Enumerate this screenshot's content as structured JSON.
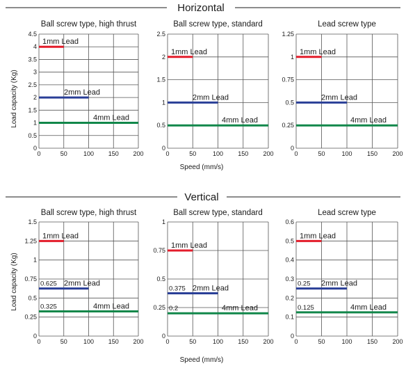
{
  "sections": [
    {
      "title": "Horizontal",
      "ylabel": "Load capacity (Kg)",
      "xlabel": "Speed (mm/s)"
    },
    {
      "title": "Vertical",
      "ylabel": "Load capacity (Kg)",
      "xlabel": "Speed (mm/s)"
    }
  ],
  "colors": {
    "1mm": "#e31d2b",
    "2mm": "#2a3f97",
    "4mm": "#11874a",
    "grid": "#555555",
    "divider": "#1a1a1a"
  },
  "chart_data": [
    {
      "type": "line",
      "section": 0,
      "title": "Ball screw type, high thrust",
      "xlim": [
        0,
        200
      ],
      "ylim": [
        0,
        4.5
      ],
      "xticks": [
        "0",
        "50",
        "100",
        "150",
        "200"
      ],
      "yticks": [
        "0",
        "0.5",
        "1",
        "1.5",
        "2",
        "2.5",
        "3",
        "3.5",
        "4",
        "4.5"
      ],
      "series": [
        {
          "name": "1mm Lead",
          "color": "1mm",
          "x": [
            0,
            50
          ],
          "y": [
            4,
            4
          ]
        },
        {
          "name": "2mm Lead",
          "color": "2mm",
          "x": [
            0,
            100
          ],
          "y": [
            2,
            2
          ]
        },
        {
          "name": "4mm Lead",
          "color": "4mm",
          "x": [
            0,
            200
          ],
          "y": [
            1,
            1
          ]
        }
      ],
      "annotations": []
    },
    {
      "type": "line",
      "section": 0,
      "title": "Ball screw type, standard",
      "xlim": [
        0,
        200
      ],
      "ylim": [
        0,
        2.5
      ],
      "xticks": [
        "0",
        "50",
        "100",
        "150",
        "200"
      ],
      "yticks": [
        "0",
        "0.5",
        "1",
        "1.5",
        "2",
        "2.5"
      ],
      "series": [
        {
          "name": "1mm Lead",
          "color": "1mm",
          "x": [
            0,
            50
          ],
          "y": [
            2,
            2
          ]
        },
        {
          "name": "2mm Lead",
          "color": "2mm",
          "x": [
            0,
            100
          ],
          "y": [
            1,
            1
          ]
        },
        {
          "name": "4mm Lead",
          "color": "4mm",
          "x": [
            0,
            200
          ],
          "y": [
            0.5,
            0.5
          ]
        }
      ],
      "annotations": []
    },
    {
      "type": "line",
      "section": 0,
      "title": "Lead screw type",
      "xlim": [
        0,
        200
      ],
      "ylim": [
        0,
        1.25
      ],
      "xticks": [
        "0",
        "50",
        "100",
        "150",
        "200"
      ],
      "yticks": [
        "0",
        "0.25",
        "0.5",
        "0.75",
        "1",
        "1.25"
      ],
      "series": [
        {
          "name": "1mm Lead",
          "color": "1mm",
          "x": [
            0,
            50
          ],
          "y": [
            1,
            1
          ]
        },
        {
          "name": "2mm Lead",
          "color": "2mm",
          "x": [
            0,
            100
          ],
          "y": [
            0.5,
            0.5
          ]
        },
        {
          "name": "4mm Lead",
          "color": "4mm",
          "x": [
            0,
            200
          ],
          "y": [
            0.25,
            0.25
          ]
        }
      ],
      "annotations": []
    },
    {
      "type": "line",
      "section": 1,
      "title": "Ball screw type, high thrust",
      "xlim": [
        0,
        200
      ],
      "ylim": [
        0,
        1.5
      ],
      "xticks": [
        "0",
        "50",
        "100",
        "150",
        "200"
      ],
      "yticks": [
        "0",
        "0.25",
        "0.5",
        "0.75",
        "1",
        "1.25",
        "1.5"
      ],
      "series": [
        {
          "name": "1mm Lead",
          "color": "1mm",
          "x": [
            0,
            50
          ],
          "y": [
            1.25,
            1.25
          ]
        },
        {
          "name": "2mm Lead",
          "color": "2mm",
          "x": [
            0,
            100
          ],
          "y": [
            0.625,
            0.625
          ]
        },
        {
          "name": "4mm Lead",
          "color": "4mm",
          "x": [
            0,
            200
          ],
          "y": [
            0.325,
            0.325
          ]
        }
      ],
      "annotations": [
        "0.625",
        "0.325"
      ]
    },
    {
      "type": "line",
      "section": 1,
      "title": "Ball screw type, standard",
      "xlim": [
        0,
        200
      ],
      "ylim": [
        0,
        1
      ],
      "xticks": [
        "0",
        "50",
        "100",
        "150",
        "200"
      ],
      "yticks": [
        "0",
        "0.25",
        "0.5",
        "0.75",
        "1"
      ],
      "series": [
        {
          "name": "1mm Lead",
          "color": "1mm",
          "x": [
            0,
            50
          ],
          "y": [
            0.75,
            0.75
          ]
        },
        {
          "name": "2mm Lead",
          "color": "2mm",
          "x": [
            0,
            100
          ],
          "y": [
            0.375,
            0.375
          ]
        },
        {
          "name": "4mm Lead",
          "color": "4mm",
          "x": [
            0,
            200
          ],
          "y": [
            0.2,
            0.2
          ]
        }
      ],
      "annotations": [
        "0.375",
        "0.2"
      ]
    },
    {
      "type": "line",
      "section": 1,
      "title": "Lead screw type",
      "xlim": [
        0,
        200
      ],
      "ylim": [
        0,
        0.6
      ],
      "xticks": [
        "0",
        "50",
        "100",
        "150",
        "200"
      ],
      "yticks": [
        "0",
        "0.1",
        "0.2",
        "0.3",
        "0.4",
        "0.5",
        "0.6"
      ],
      "series": [
        {
          "name": "1mm Lead",
          "color": "1mm",
          "x": [
            0,
            50
          ],
          "y": [
            0.5,
            0.5
          ]
        },
        {
          "name": "2mm Lead",
          "color": "2mm",
          "x": [
            0,
            100
          ],
          "y": [
            0.25,
            0.25
          ]
        },
        {
          "name": "4mm Lead",
          "color": "4mm",
          "x": [
            0,
            200
          ],
          "y": [
            0.125,
            0.125
          ]
        }
      ],
      "annotations": [
        "0.25",
        "0.125"
      ]
    }
  ]
}
